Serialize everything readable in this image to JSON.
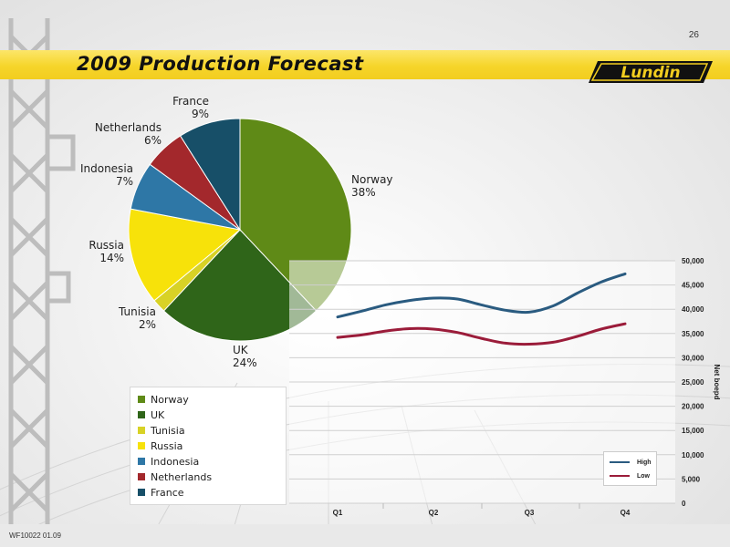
{
  "page": {
    "number": "26",
    "title": "2009 Production Forecast",
    "logo_text": "Lundin",
    "footer": "WF10022 01.09"
  },
  "chart_data": [
    {
      "type": "pie",
      "labels": [
        "Norway",
        "UK",
        "Tunisia",
        "Russia",
        "Indonesia",
        "Netherlands",
        "France"
      ],
      "values": [
        38,
        24,
        2,
        14,
        7,
        6,
        9
      ],
      "value_labels": [
        "38%",
        "24%",
        "2%",
        "14%",
        "7%",
        "6%",
        "9%"
      ],
      "colors": [
        "#5f8a17",
        "#2f6519",
        "#d8d226",
        "#f7e20a",
        "#2e77a6",
        "#a3282c",
        "#174f68"
      ],
      "legend": [
        "Norway",
        "UK",
        "Tunisia",
        "Russia",
        "Indonesia",
        "Netherlands",
        "France"
      ],
      "legend_placement": "bottom-left"
    },
    {
      "type": "line",
      "categories": [
        "Q1",
        "Q2",
        "Q3",
        "Q4"
      ],
      "ylabel": "Net boepd",
      "ylim": [
        0,
        50000
      ],
      "y_ticks": [
        "0",
        "5,000",
        "10,000",
        "15,000",
        "20,000",
        "25,000",
        "30,000",
        "35,000",
        "40,000",
        "45,000",
        "50,000"
      ],
      "grid": true,
      "legend_placement": "bottom-right",
      "x": [
        0,
        0.25,
        0.5,
        0.75,
        1,
        1.25,
        1.5,
        1.75,
        2,
        2.25,
        2.5,
        2.75,
        3
      ],
      "series": [
        {
          "name": "High",
          "color": "#2a5b80",
          "values": [
            38400,
            39600,
            40900,
            41800,
            42300,
            42100,
            40900,
            39800,
            39400,
            40700,
            43300,
            45600,
            47300
          ]
        },
        {
          "name": "Low",
          "color": "#9b1c3a",
          "values": [
            34200,
            34700,
            35500,
            36000,
            35900,
            35200,
            34000,
            33000,
            32800,
            33200,
            34400,
            35900,
            37000
          ]
        }
      ]
    }
  ]
}
